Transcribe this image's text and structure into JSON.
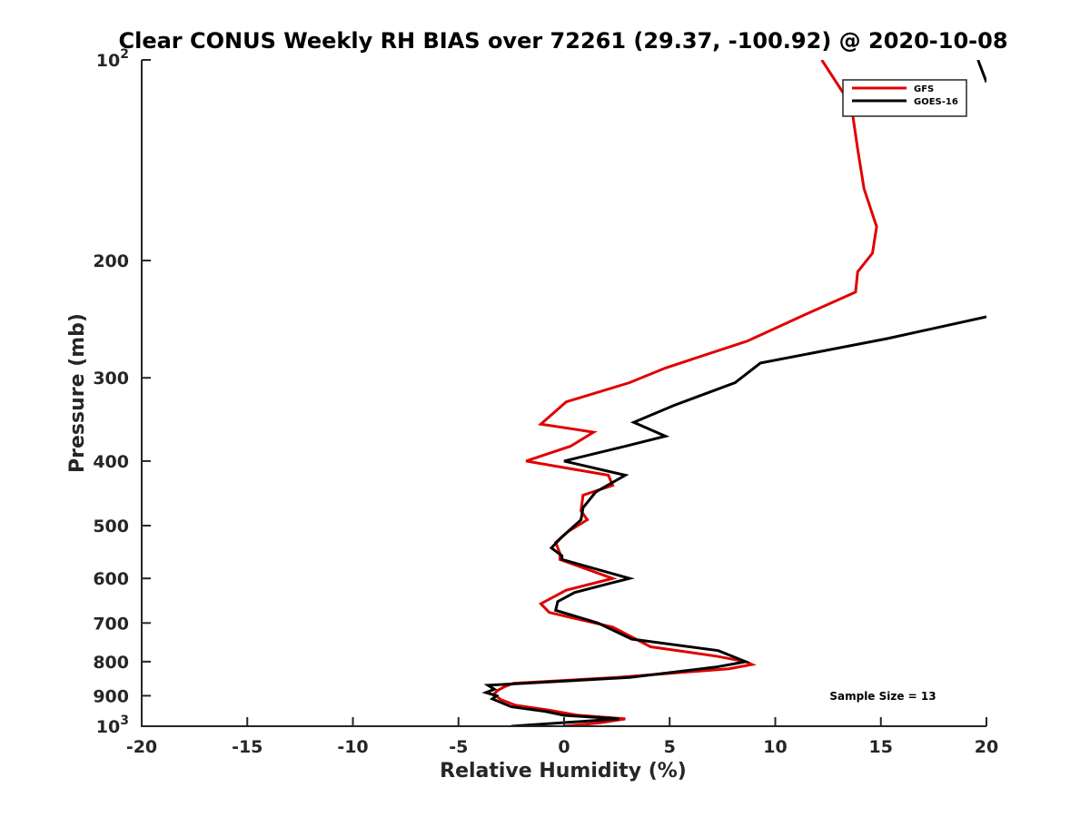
{
  "chart_data": {
    "type": "line",
    "title": "Clear CONUS Weekly RH BIAS over 72261 (29.37, -100.92) @ 2020-10-08",
    "xlabel": "Relative Humidity (%)",
    "ylabel": "Pressure (mb)",
    "xlim": [
      -20,
      20
    ],
    "ylim": [
      100,
      1000
    ],
    "y_scale": "log",
    "y_reversed": true,
    "grid": false,
    "legend_position": "top-right",
    "x_ticks": [
      "-20",
      "-15",
      "-10",
      "-5",
      "0",
      "5",
      "10",
      "15",
      "20"
    ],
    "y_ticks": [
      {
        "value": 100,
        "base": "10",
        "exp": "2"
      },
      {
        "value": 200,
        "label": "200"
      },
      {
        "value": 300,
        "label": "300"
      },
      {
        "value": 400,
        "label": "400"
      },
      {
        "value": 500,
        "label": "500"
      },
      {
        "value": 600,
        "label": "600"
      },
      {
        "value": 700,
        "label": "700"
      },
      {
        "value": 800,
        "label": "800"
      },
      {
        "value": 900,
        "label": "900"
      },
      {
        "value": 1000,
        "base": "10",
        "exp": "3"
      }
    ],
    "annotation": "Sample Size = 13",
    "series": [
      {
        "name": "GFS",
        "color": "#e00000",
        "points": [
          [
            12.2,
            100
          ],
          [
            13.6,
            117
          ],
          [
            13.9,
            136
          ],
          [
            14.2,
            156
          ],
          [
            14.8,
            178
          ],
          [
            14.6,
            195
          ],
          [
            13.9,
            208
          ],
          [
            13.8,
            223
          ],
          [
            11.3,
            242
          ],
          [
            8.7,
            264
          ],
          [
            4.8,
            290
          ],
          [
            3.1,
            305
          ],
          [
            0.1,
            326
          ],
          [
            -1.1,
            352
          ],
          [
            1.4,
            362
          ],
          [
            0.3,
            380
          ],
          [
            -1.8,
            400
          ],
          [
            2.1,
            420
          ],
          [
            2.3,
            435
          ],
          [
            0.9,
            450
          ],
          [
            0.8,
            475
          ],
          [
            1.1,
            490
          ],
          [
            0.2,
            510
          ],
          [
            -0.4,
            530
          ],
          [
            -0.2,
            550
          ],
          [
            -0.2,
            562
          ],
          [
            2.3,
            600
          ],
          [
            0.1,
            625
          ],
          [
            -1.1,
            655
          ],
          [
            -0.7,
            675
          ],
          [
            2.3,
            710
          ],
          [
            4.1,
            760
          ],
          [
            7.2,
            785
          ],
          [
            8.6,
            800
          ],
          [
            8.9,
            808
          ],
          [
            7.8,
            820
          ],
          [
            2.5,
            845
          ],
          [
            -2.4,
            862
          ],
          [
            -2.8,
            872
          ],
          [
            -3.1,
            882
          ],
          [
            -3.3,
            893
          ],
          [
            -3.2,
            902
          ],
          [
            -3.0,
            912
          ],
          [
            -2.3,
            930
          ],
          [
            -0.8,
            945
          ],
          [
            0.6,
            962
          ],
          [
            2.9,
            975
          ],
          [
            1.7,
            988
          ],
          [
            0.0,
            1000
          ]
        ]
      },
      {
        "name": "GOES-16",
        "color": "#000000",
        "points": [
          [
            20.0,
            243
          ],
          [
            15.3,
            262
          ],
          [
            9.3,
            285
          ],
          [
            8.1,
            305
          ],
          [
            5.2,
            330
          ],
          [
            3.3,
            350
          ],
          [
            4.8,
            367
          ],
          [
            2.9,
            380
          ],
          [
            0.0,
            400
          ],
          [
            2.9,
            420
          ],
          [
            1.5,
            445
          ],
          [
            0.9,
            470
          ],
          [
            0.8,
            490
          ],
          [
            -0.1,
            520
          ],
          [
            -0.6,
            540
          ],
          [
            -0.1,
            555
          ],
          [
            -0.1,
            562
          ],
          [
            3.1,
            600
          ],
          [
            2.2,
            610
          ],
          [
            0.5,
            630
          ],
          [
            -0.3,
            650
          ],
          [
            -0.4,
            670
          ],
          [
            1.6,
            700
          ],
          [
            3.2,
            740
          ],
          [
            7.3,
            770
          ],
          [
            8.6,
            800
          ],
          [
            7.2,
            815
          ],
          [
            3.1,
            845
          ],
          [
            -3.6,
            868
          ],
          [
            -3.3,
            880
          ],
          [
            -3.7,
            890
          ],
          [
            -3.2,
            900
          ],
          [
            -3.4,
            910
          ],
          [
            -2.5,
            935
          ],
          [
            -0.9,
            950
          ],
          [
            0.0,
            963
          ],
          [
            2.6,
            975
          ],
          [
            -2.5,
            1000
          ]
        ]
      },
      {
        "name": "",
        "color": "#000000",
        "points": [
          [
            19.6,
            100
          ],
          [
            20.0,
            108
          ]
        ]
      }
    ]
  }
}
